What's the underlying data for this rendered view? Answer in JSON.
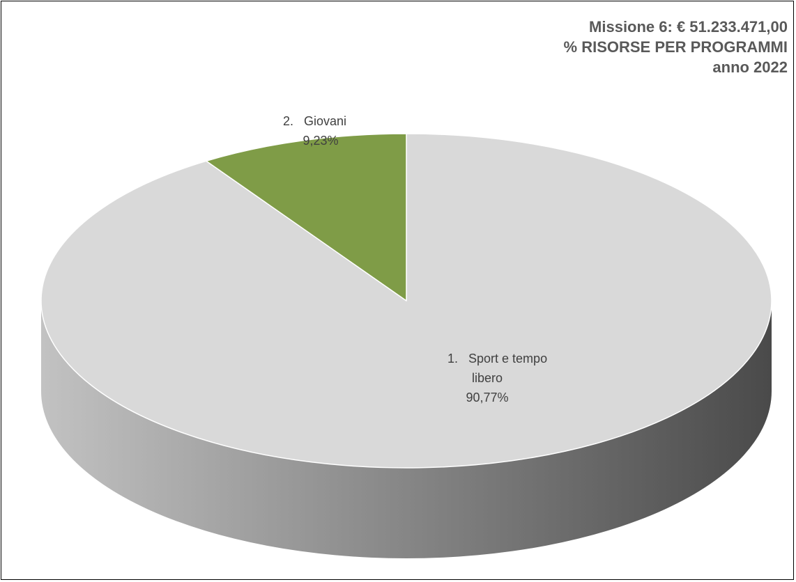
{
  "chart_data": {
    "type": "pie",
    "style": "3d",
    "title_lines": [
      "Missione 6: € 51.233.471,00",
      "% RISORSE PER PROGRAMMI",
      "anno 2022"
    ],
    "slices": [
      {
        "label_lines": [
          "1.   Sport e tempo",
          "libero"
        ],
        "value": 90.77,
        "value_label": "90,77%",
        "color": "#d9d9d9"
      },
      {
        "label_lines": [
          "2.   Giovani"
        ],
        "value": 9.23,
        "value_label": "9,23%",
        "color": "#7f9c47"
      }
    ],
    "side_gradient": [
      "#c2c2c2",
      "#4a4a4a"
    ]
  }
}
